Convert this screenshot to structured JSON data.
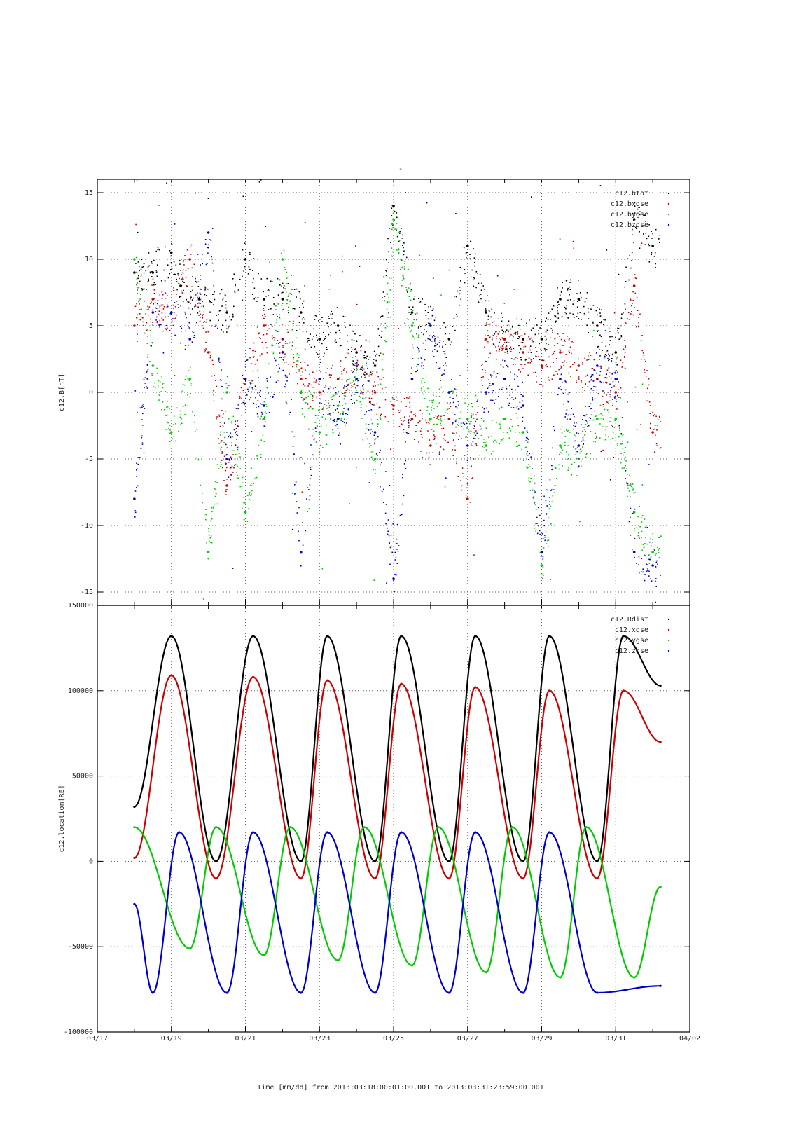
{
  "title": "-",
  "footer_label": "Time [mm/dd]  from 2013:03:18:00:01:00.001  to  2013:03:31:23:59:00.001",
  "colors": {
    "black": "#000000",
    "red": "#cc0000",
    "green": "#00cc00",
    "blue": "#0000cc",
    "grid": "#666666"
  },
  "chart_data": [
    {
      "type": "scatter",
      "ylabel": "c12.B[nT]",
      "xlim": [
        "03/17",
        "04/02"
      ],
      "ylim": [
        -16,
        16
      ],
      "yticks": [
        -15,
        -10,
        -5,
        0,
        5,
        10,
        15
      ],
      "x_ticks": [
        "03/17",
        "03/19",
        "03/21",
        "03/23",
        "03/25",
        "03/27",
        "03/29",
        "03/31",
        "04/02"
      ],
      "grid": true,
      "legend_position": "top-right",
      "series": [
        {
          "name": "c12.btot",
          "color": "#000000",
          "x": [
            "03/18",
            "03/18 12:00",
            "03/19",
            "03/19 06:00",
            "03/19 18:00",
            "03/20 12:00",
            "03/21",
            "03/21 12:00",
            "03/22",
            "03/22 12:00",
            "03/23",
            "03/23 12:00",
            "03/24",
            "03/24 12:00",
            "03/25",
            "03/25 12:00",
            "03/26",
            "03/26 12:00",
            "03/27",
            "03/27 12:00",
            "03/28",
            "03/28 12:00",
            "03/29",
            "03/29 12:00",
            "03/30",
            "03/30 12:00",
            "03/31",
            "03/31 12:00",
            "04/01"
          ],
          "y": [
            9,
            9,
            10.5,
            8,
            7,
            6,
            10,
            7,
            7,
            6,
            4,
            5,
            3,
            2,
            14,
            6,
            5,
            4,
            11,
            6,
            4,
            4,
            4,
            7,
            7,
            5,
            3,
            13,
            11
          ]
        },
        {
          "name": "c12.bxgse",
          "color": "#cc0000",
          "x": [
            "03/18",
            "03/18 12:00",
            "03/19",
            "03/19 12:00",
            "03/20",
            "03/20 12:00",
            "03/21",
            "03/21 12:00",
            "03/22",
            "03/22 12:00",
            "03/23",
            "03/23 12:00",
            "03/24",
            "03/24 12:00",
            "03/25",
            "03/25 12:00",
            "03/26",
            "03/26 12:00",
            "03/27",
            "03/27 12:00",
            "03/28",
            "03/28 12:00",
            "03/29",
            "03/29 12:00",
            "03/30",
            "03/30 12:00",
            "03/31",
            "03/31 12:00",
            "04/01"
          ],
          "y": [
            5,
            7,
            6,
            10,
            3,
            -7,
            1,
            5,
            4,
            1,
            0,
            1,
            2,
            0,
            -1,
            -2,
            -4,
            -2,
            -8,
            4,
            4,
            3,
            2,
            3,
            2,
            1,
            0,
            8,
            -3
          ]
        },
        {
          "name": "c12.bygse",
          "color": "#00cc00",
          "x": [
            "03/18",
            "03/18 12:00",
            "03/19",
            "03/19 12:00",
            "03/20",
            "03/20 12:00",
            "03/21",
            "03/21 12:00",
            "03/22",
            "03/22 12:00",
            "03/23",
            "03/23 12:00",
            "03/24",
            "03/24 12:00",
            "03/25",
            "03/25 12:00",
            "03/26",
            "03/26 12:00",
            "03/27",
            "03/27 12:00",
            "03/28",
            "03/28 12:00",
            "03/29",
            "03/29 12:00",
            "03/30",
            "03/30 12:00",
            "03/31",
            "03/31 12:00",
            "04/01"
          ],
          "y": [
            10,
            2,
            -3,
            1,
            -12,
            0,
            -9,
            -2,
            10,
            0,
            -3,
            -1,
            1,
            -5,
            13,
            5,
            -2,
            0,
            -2,
            -4,
            -2,
            -3,
            -13,
            -4,
            -5,
            -2,
            -2,
            -9,
            -12
          ]
        },
        {
          "name": "c12.bzgse",
          "color": "#0000cc",
          "x": [
            "03/18",
            "03/18 12:00",
            "03/19",
            "03/19 12:00",
            "03/20",
            "03/20 12:00",
            "03/21",
            "03/21 12:00",
            "03/22",
            "03/22 12:00",
            "03/23",
            "03/23 12:00",
            "03/24",
            "03/24 12:00",
            "03/25",
            "03/25 12:00",
            "03/26",
            "03/26 12:00",
            "03/27",
            "03/27 12:00",
            "03/28",
            "03/28 12:00",
            "03/29",
            "03/29 12:00",
            "03/30",
            "03/30 12:00",
            "03/31",
            "03/31 12:00",
            "04/01"
          ],
          "y": [
            -8,
            6,
            6,
            4,
            12,
            -5,
            1,
            -1,
            3,
            -12,
            1,
            -2,
            1,
            -3,
            -14,
            1,
            5,
            0,
            -4,
            0,
            1,
            -1,
            -12,
            1,
            -4,
            2,
            1,
            -12,
            -13
          ]
        }
      ]
    },
    {
      "type": "scatter",
      "ylabel": "c12.location[RE]",
      "xlim": [
        "03/17",
        "04/02"
      ],
      "ylim": [
        -100000,
        150000
      ],
      "yticks": [
        -100000,
        -50000,
        0,
        50000,
        100000,
        150000
      ],
      "x_ticks": [
        "03/17",
        "03/19",
        "03/21",
        "03/23",
        "03/25",
        "03/27",
        "03/29",
        "03/31",
        "04/02"
      ],
      "grid": true,
      "legend_position": "top-right",
      "period_days": 2.0,
      "series": [
        {
          "name": "c12.Rdist",
          "color": "#000000",
          "x": [
            "03/18",
            "03/19",
            "03/20 05:00",
            "03/21 05:00",
            "03/22 12:00",
            "03/23 05:00",
            "03/24 12:00",
            "03/25 05:00",
            "03/26 12:00",
            "03/27 05:00",
            "03/28 12:00",
            "03/29 05:00",
            "03/30 12:00",
            "03/31 05:00",
            "04/01 05:00"
          ],
          "y": [
            32000,
            132000,
            0,
            132000,
            0,
            132000,
            0,
            132000,
            0,
            132000,
            0,
            132000,
            0,
            132000,
            103000
          ]
        },
        {
          "name": "c12.xgse",
          "color": "#cc0000",
          "x": [
            "03/18",
            "03/19",
            "03/20 05:00",
            "03/21 05:00",
            "03/22 12:00",
            "03/23 05:00",
            "03/24 12:00",
            "03/25 05:00",
            "03/26 12:00",
            "03/27 05:00",
            "03/28 12:00",
            "03/29 05:00",
            "03/30 12:00",
            "03/31 05:00",
            "04/01 05:00"
          ],
          "y": [
            2000,
            109000,
            -10000,
            108000,
            -10000,
            106000,
            -10000,
            104000,
            -10000,
            102000,
            -10000,
            100000,
            -10000,
            100000,
            70000
          ]
        },
        {
          "name": "c12.ygse",
          "color": "#00cc00",
          "x": [
            "03/18",
            "03/19 12:00",
            "03/20 05:00",
            "03/21 12:00",
            "03/22 05:00",
            "03/23 12:00",
            "03/24 05:00",
            "03/25 12:00",
            "03/26 05:00",
            "03/27 12:00",
            "03/28 05:00",
            "03/29 12:00",
            "03/30 05:00",
            "03/31 12:00",
            "04/01 05:00"
          ],
          "y": [
            20000,
            -51000,
            20000,
            -55000,
            20000,
            -58000,
            20000,
            -61000,
            20000,
            -65000,
            20000,
            -68000,
            20000,
            -68000,
            -15000
          ]
        },
        {
          "name": "c12.zgse",
          "color": "#0000cc",
          "x": [
            "03/18",
            "03/18 12:00",
            "03/19 05:00",
            "03/20 12:00",
            "03/21 05:00",
            "03/22 12:00",
            "03/23 05:00",
            "03/24 12:00",
            "03/25 05:00",
            "03/26 12:00",
            "03/27 05:00",
            "03/28 12:00",
            "03/29 05:00",
            "03/30 12:00",
            "04/01 05:00"
          ],
          "y": [
            -25000,
            -77000,
            17000,
            -77000,
            17000,
            -77000,
            17000,
            -77000,
            17000,
            -77000,
            17000,
            -77000,
            17000,
            -77000,
            -73000
          ]
        }
      ]
    }
  ]
}
